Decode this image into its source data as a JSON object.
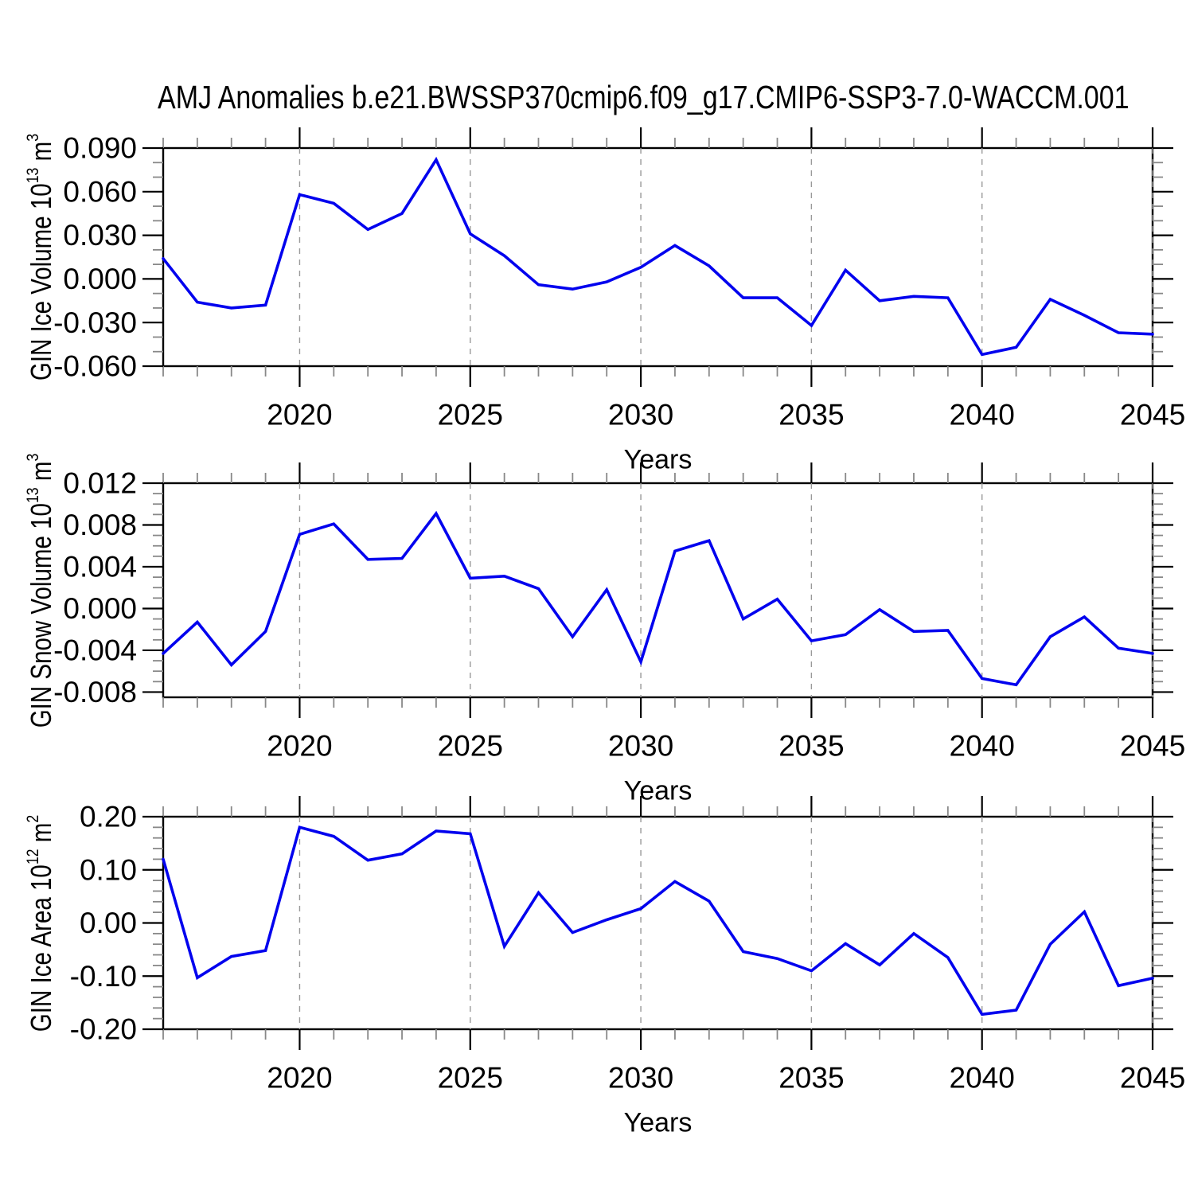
{
  "title": "AMJ Anomalies b.e21.BWSSP370cmip6.f09_g17.CMIP6-SSP3-7.0-WACCM.001",
  "colors": {
    "line": "#0202EE",
    "grid": "#999999",
    "axis": "#000000",
    "major_tick": "#000000",
    "minor_tick": "#888888",
    "background": "#FFFFFF"
  },
  "x_axis": {
    "label": "Years",
    "min": 2016,
    "max": 2045,
    "major_ticks": [
      2020,
      2025,
      2030,
      2035,
      2040,
      2045
    ],
    "tick_labels": [
      "2020",
      "2025",
      "2030",
      "2035",
      "2040",
      "2045"
    ],
    "minor_step": 1,
    "gridline_years": [
      2020,
      2025,
      2030,
      2035,
      2040,
      2045
    ]
  },
  "chart_data": [
    {
      "type": "line",
      "name": "GIN Ice Volume",
      "ylabel": {
        "text": "GIN Ice Volume 10",
        "sup1": "13",
        "unit": " m",
        "sup2": "3"
      },
      "xlabel": "Years",
      "ylim": [
        -0.06,
        0.09
      ],
      "ytick_values": [
        0.09,
        0.06,
        0.03,
        0.0,
        -0.03,
        -0.06
      ],
      "ytick_labels": [
        "0.090",
        "0.060",
        "0.030",
        "0.000",
        "-0.030",
        "-0.060"
      ],
      "y_minor_step": 0.01,
      "x": [
        2016,
        2017,
        2018,
        2019,
        2020,
        2021,
        2022,
        2023,
        2024,
        2025,
        2026,
        2027,
        2028,
        2029,
        2030,
        2031,
        2032,
        2033,
        2034,
        2035,
        2036,
        2037,
        2038,
        2039,
        2040,
        2041,
        2042,
        2043,
        2044,
        2045
      ],
      "values": [
        0.014,
        -0.016,
        -0.02,
        -0.018,
        0.058,
        0.052,
        0.034,
        0.045,
        0.082,
        0.031,
        0.016,
        -0.004,
        -0.007,
        -0.002,
        0.008,
        0.023,
        0.009,
        -0.013,
        -0.013,
        -0.032,
        0.006,
        -0.015,
        -0.012,
        -0.013,
        -0.052,
        -0.047,
        -0.014,
        -0.025,
        -0.037,
        -0.038
      ]
    },
    {
      "type": "line",
      "name": "GIN Snow Volume",
      "ylabel": {
        "text": "GIN Snow Volume 10",
        "sup1": "13",
        "unit": " m",
        "sup2": "3"
      },
      "xlabel": "Years",
      "ylim": [
        -0.0085,
        0.012
      ],
      "ytick_values": [
        0.012,
        0.008,
        0.004,
        0.0,
        -0.004,
        -0.008
      ],
      "ytick_labels": [
        "0.012",
        "0.008",
        "0.004",
        "0.000",
        "-0.004",
        "-0.008"
      ],
      "y_minor_step": 0.001,
      "x": [
        2016,
        2017,
        2018,
        2019,
        2020,
        2021,
        2022,
        2023,
        2024,
        2025,
        2026,
        2027,
        2028,
        2029,
        2030,
        2031,
        2032,
        2033,
        2034,
        2035,
        2036,
        2037,
        2038,
        2039,
        2040,
        2041,
        2042,
        2043,
        2044,
        2045
      ],
      "values": [
        -0.0043,
        -0.0013,
        -0.0054,
        -0.0022,
        0.0071,
        0.0081,
        0.0047,
        0.0048,
        0.0091,
        0.0029,
        0.0031,
        0.0019,
        -0.0027,
        0.0018,
        -0.0051,
        0.0055,
        0.0065,
        -0.001,
        0.0009,
        -0.0031,
        -0.0025,
        -0.0001,
        -0.0022,
        -0.0021,
        -0.0067,
        -0.0073,
        -0.0027,
        -0.0008,
        -0.0038,
        -0.0043
      ]
    },
    {
      "type": "line",
      "name": "GIN Ice Area",
      "ylabel": {
        "text": "GIN Ice Area 10",
        "sup1": "12",
        "unit": " m",
        "sup2": "2"
      },
      "xlabel": "Years",
      "ylim": [
        -0.2,
        0.2
      ],
      "ytick_values": [
        0.2,
        0.1,
        0.0,
        -0.1,
        -0.2
      ],
      "ytick_labels": [
        "0.20",
        "0.10",
        "0.00",
        "-0.10",
        "-0.20"
      ],
      "y_minor_step": 0.02,
      "x": [
        2016,
        2017,
        2018,
        2019,
        2020,
        2021,
        2022,
        2023,
        2024,
        2025,
        2026,
        2027,
        2028,
        2029,
        2030,
        2031,
        2032,
        2033,
        2034,
        2035,
        2036,
        2037,
        2038,
        2039,
        2040,
        2041,
        2042,
        2043,
        2044,
        2045
      ],
      "values": [
        0.12,
        -0.103,
        -0.063,
        -0.052,
        0.18,
        0.163,
        0.118,
        0.13,
        0.173,
        0.168,
        -0.044,
        0.057,
        -0.018,
        0.006,
        0.027,
        0.078,
        0.041,
        -0.054,
        -0.067,
        -0.09,
        -0.039,
        -0.079,
        -0.02,
        -0.065,
        -0.172,
        -0.164,
        -0.04,
        0.021,
        -0.118,
        -0.104
      ]
    }
  ]
}
